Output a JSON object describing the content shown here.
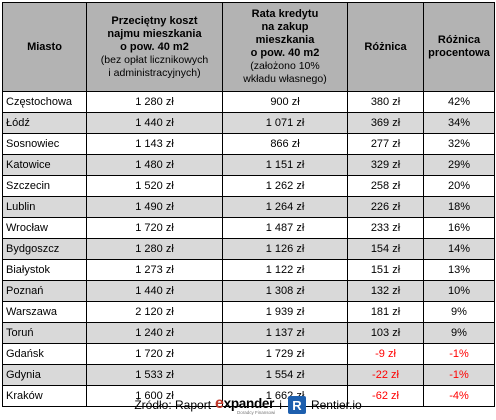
{
  "table": {
    "headers": {
      "city": "Miasto",
      "rent_main": [
        "Przeciętny koszt",
        "najmu mieszkania",
        "o pow. 40 m2"
      ],
      "rent_sub": [
        "(bez opłat licznikowych",
        "i administracyjnych)"
      ],
      "loan_main": [
        "Rata kredytu",
        "na zakup",
        "mieszkania",
        "o pow. 40 m2"
      ],
      "loan_sub": [
        "(założono 10%",
        "wkładu własnego)"
      ],
      "diff": "Różnica",
      "diff_pct": [
        "Różnica",
        "procentowa"
      ]
    },
    "rows": [
      {
        "city": "Częstochowa",
        "rent": "1 280 zł",
        "loan": "900 zł",
        "diff": "380 zł",
        "pct": "42%",
        "neg": false
      },
      {
        "city": "Łódź",
        "rent": "1 440 zł",
        "loan": "1 071 zł",
        "diff": "369 zł",
        "pct": "34%",
        "neg": false
      },
      {
        "city": "Sosnowiec",
        "rent": "1 143 zł",
        "loan": "866 zł",
        "diff": "277 zł",
        "pct": "32%",
        "neg": false
      },
      {
        "city": "Katowice",
        "rent": "1 480 zł",
        "loan": "1 151 zł",
        "diff": "329 zł",
        "pct": "29%",
        "neg": false
      },
      {
        "city": "Szczecin",
        "rent": "1 520 zł",
        "loan": "1 262 zł",
        "diff": "258 zł",
        "pct": "20%",
        "neg": false
      },
      {
        "city": "Lublin",
        "rent": "1 490 zł",
        "loan": "1 264 zł",
        "diff": "226 zł",
        "pct": "18%",
        "neg": false
      },
      {
        "city": "Wrocław",
        "rent": "1 720 zł",
        "loan": "1 487 zł",
        "diff": "233 zł",
        "pct": "16%",
        "neg": false
      },
      {
        "city": "Bydgoszcz",
        "rent": "1 280 zł",
        "loan": "1 126 zł",
        "diff": "154 zł",
        "pct": "14%",
        "neg": false
      },
      {
        "city": "Białystok",
        "rent": "1 273 zł",
        "loan": "1 122 zł",
        "diff": "151 zł",
        "pct": "13%",
        "neg": false
      },
      {
        "city": "Poznań",
        "rent": "1 440 zł",
        "loan": "1 308 zł",
        "diff": "132 zł",
        "pct": "10%",
        "neg": false
      },
      {
        "city": "Warszawa",
        "rent": "2 120 zł",
        "loan": "1 939 zł",
        "diff": "181 zł",
        "pct": "9%",
        "neg": false
      },
      {
        "city": "Toruń",
        "rent": "1 240 zł",
        "loan": "1 137 zł",
        "diff": "103 zł",
        "pct": "9%",
        "neg": false
      },
      {
        "city": "Gdańsk",
        "rent": "1 720 zł",
        "loan": "1 729 zł",
        "diff": "-9 zł",
        "pct": "-1%",
        "neg": true
      },
      {
        "city": "Gdynia",
        "rent": "1 533 zł",
        "loan": "1 554 zł",
        "diff": "-22 zł",
        "pct": "-1%",
        "neg": true
      },
      {
        "city": "Kraków",
        "rent": "1 600 zł",
        "loan": "1 662 zł",
        "diff": "-62 zł",
        "pct": "-4%",
        "neg": true
      }
    ]
  },
  "source": {
    "prefix": "Źródło: Raport",
    "expander_brand": "expander",
    "expander_tagline": "Doradcy Finansowi",
    "conjunction": "i",
    "rentier_icon": "R",
    "rentier_brand": "Rentier.io"
  },
  "colors": {
    "header_bg": "#b3b3b3",
    "alt_row_bg": "#d9d9d9",
    "negative_text": "#ff0000",
    "expander_accent": "#c0392b",
    "rentier_blue": "#1d5fae"
  }
}
